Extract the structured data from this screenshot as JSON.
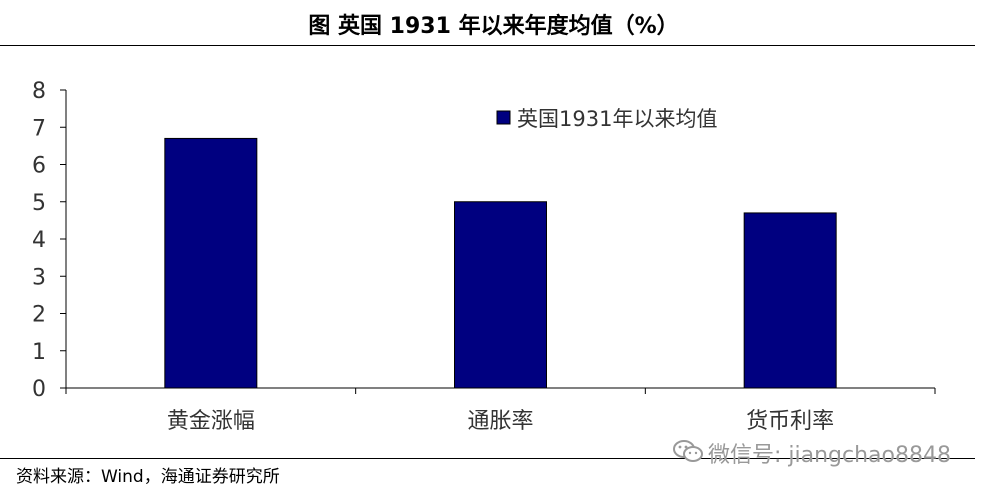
{
  "header": {
    "title": "图  英国 1931 年以来年度均值（%）"
  },
  "footer": {
    "source": "资料来源：Wind，海通证券研究所",
    "watermark_text": "微信号: jiangchao8848",
    "watermark_icon": "wechat-icon"
  },
  "chart_data": {
    "type": "bar",
    "categories": [
      "黄金涨幅",
      "通胀率",
      "货币利率"
    ],
    "series": [
      {
        "name": "英国1931年以来均值",
        "values": [
          6.7,
          5.0,
          4.7
        ],
        "color": "#000080"
      }
    ],
    "ylim": [
      0,
      8
    ],
    "yticks": [
      "0",
      "1",
      "2",
      "3",
      "4",
      "5",
      "6",
      "7",
      "8"
    ],
    "grid": false,
    "legend_position": "top-right"
  }
}
